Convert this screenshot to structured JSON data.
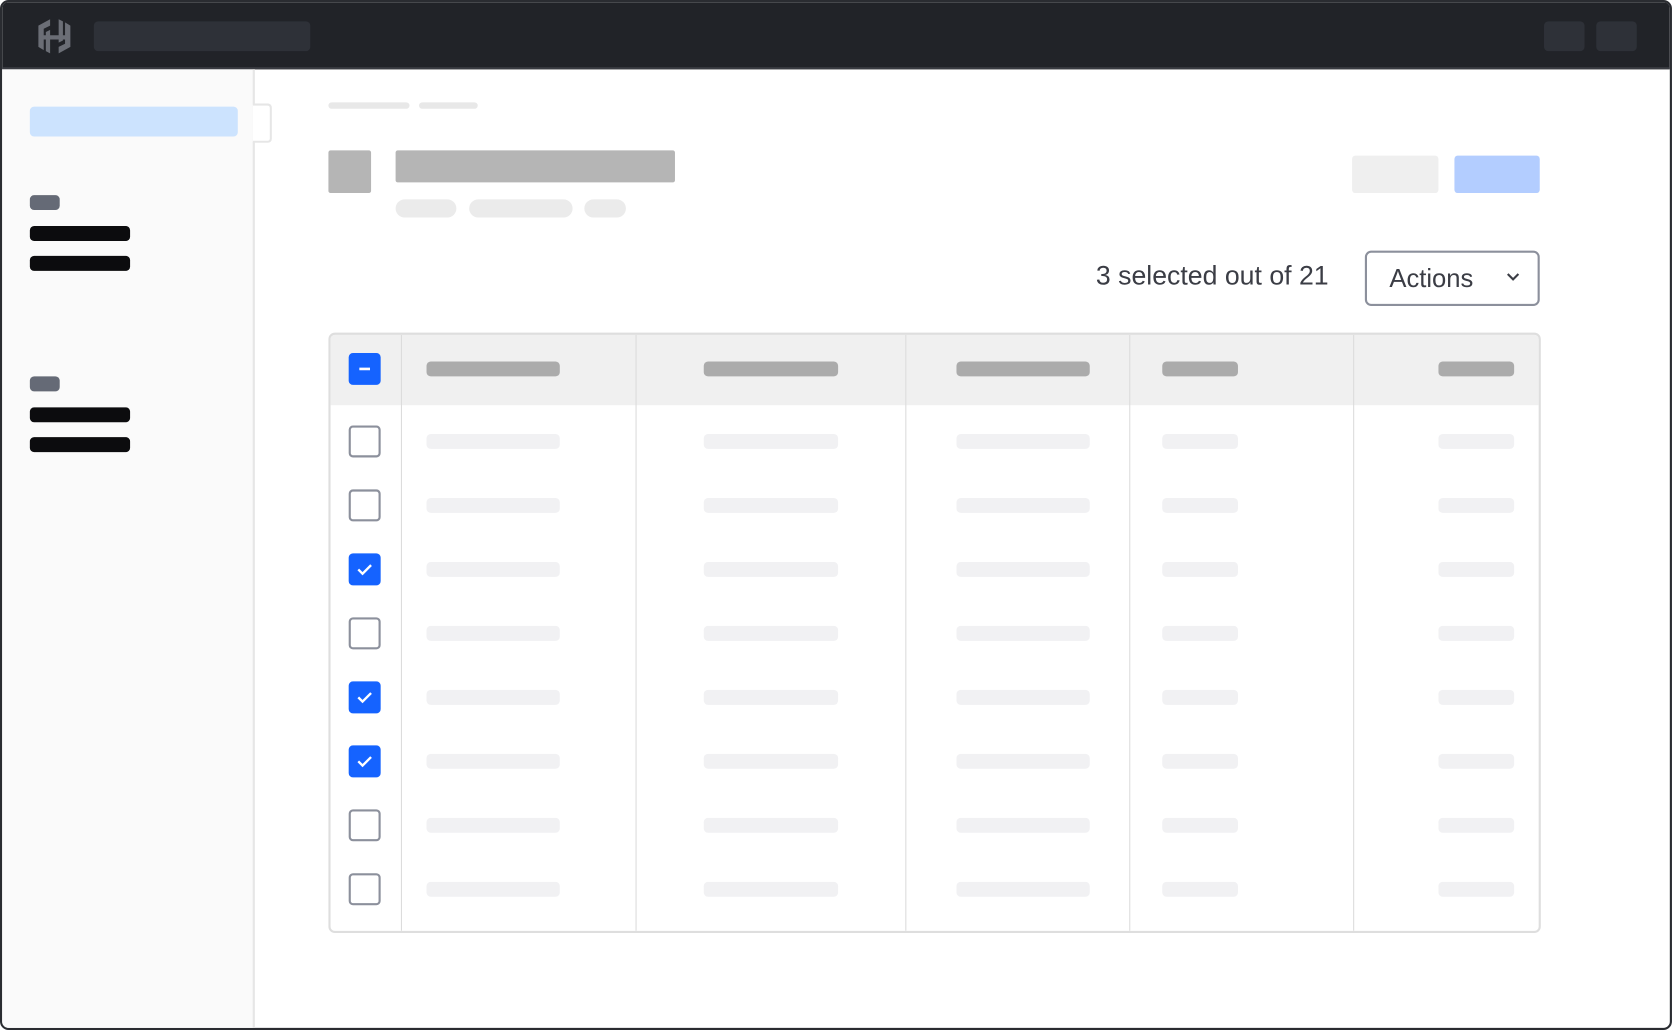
{
  "colors": {
    "topbar": "#212328",
    "accent": "#1563ff",
    "sidebar_active": "#cce3fe",
    "primary_button": "#b3cdff"
  },
  "header": {
    "logo_icon": "hashicorp-logo-icon"
  },
  "toolbar": {
    "selection_status": "3 selected out of 21",
    "actions_label": "Actions",
    "actions_icon": "chevron-down-icon"
  },
  "table": {
    "header_checkbox": "indeterminate",
    "columns": 5,
    "rows": [
      {
        "checked": false
      },
      {
        "checked": false
      },
      {
        "checked": true
      },
      {
        "checked": false
      },
      {
        "checked": true
      },
      {
        "checked": true
      },
      {
        "checked": false
      },
      {
        "checked": false
      }
    ]
  }
}
